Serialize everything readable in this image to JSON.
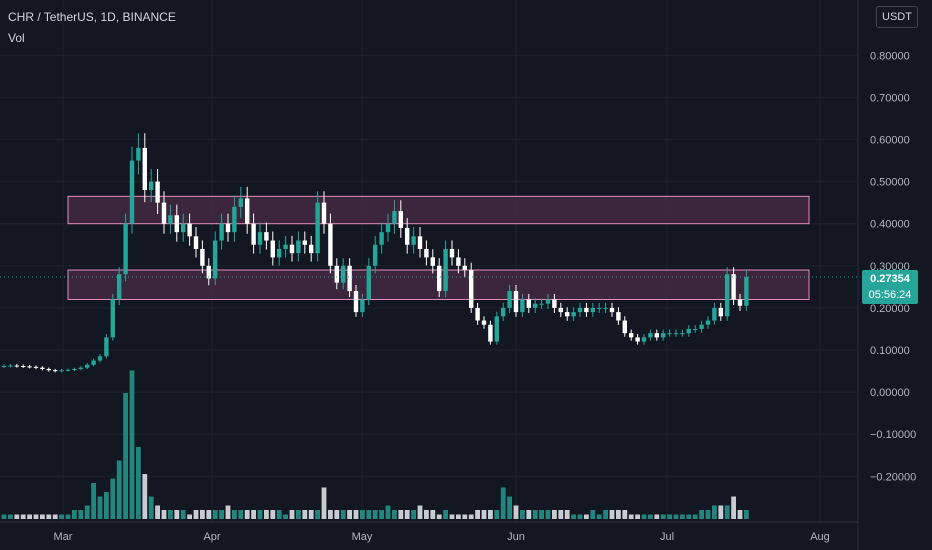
{
  "header": {
    "symbol": "CHR / TetherUS, 1D, BINANCE",
    "volume_label": "Vol"
  },
  "price_axis": {
    "unit": "USDT",
    "last_price": "0.27354",
    "countdown": "05:56:24"
  },
  "colors": {
    "background": "#131722",
    "up": "#26a69a",
    "down": "#ffffff",
    "zone_fill": "#4a2c44",
    "zone_border": "#e58bbd",
    "grid": "#1e222d"
  },
  "chart_data": {
    "type": "candlestick",
    "symbol": "CHR / TetherUS",
    "interval": "1D",
    "exchange": "BINANCE",
    "y_ticks": [
      0.8,
      0.7,
      0.6,
      0.5,
      0.4,
      0.3,
      0.2,
      0.1,
      0.0,
      -0.1,
      -0.2
    ],
    "y_tick_labels": [
      "0.80000",
      "0.70000",
      "0.60000",
      "0.50000",
      "0.40000",
      "0.30000",
      "0.20000",
      "0.10000",
      "0.00000",
      "−0.10000",
      "−0.20000"
    ],
    "x_labels": [
      "Mar",
      "Apr",
      "May",
      "Jun",
      "Jul",
      "Aug"
    ],
    "last_price": 0.27354,
    "zones": [
      {
        "from": 0.4,
        "to": 0.465
      },
      {
        "from": 0.22,
        "to": 0.29
      }
    ],
    "closes": [
      0.062,
      0.063,
      0.062,
      0.061,
      0.06,
      0.058,
      0.055,
      0.052,
      0.05,
      0.052,
      0.053,
      0.055,
      0.058,
      0.065,
      0.075,
      0.085,
      0.13,
      0.22,
      0.28,
      0.4,
      0.55,
      0.58,
      0.48,
      0.5,
      0.45,
      0.4,
      0.42,
      0.38,
      0.4,
      0.37,
      0.34,
      0.3,
      0.27,
      0.36,
      0.4,
      0.38,
      0.44,
      0.46,
      0.4,
      0.35,
      0.38,
      0.36,
      0.32,
      0.34,
      0.35,
      0.33,
      0.36,
      0.35,
      0.33,
      0.45,
      0.4,
      0.3,
      0.26,
      0.3,
      0.24,
      0.19,
      0.22,
      0.3,
      0.35,
      0.38,
      0.4,
      0.43,
      0.39,
      0.35,
      0.37,
      0.34,
      0.32,
      0.3,
      0.24,
      0.34,
      0.32,
      0.3,
      0.29,
      0.2,
      0.17,
      0.16,
      0.12,
      0.18,
      0.2,
      0.24,
      0.19,
      0.22,
      0.2,
      0.21,
      0.21,
      0.22,
      0.2,
      0.19,
      0.18,
      0.19,
      0.2,
      0.19,
      0.2,
      0.2,
      0.2,
      0.19,
      0.17,
      0.14,
      0.13,
      0.12,
      0.13,
      0.14,
      0.13,
      0.14,
      0.14,
      0.14,
      0.14,
      0.15,
      0.15,
      0.16,
      0.17,
      0.2,
      0.18,
      0.28,
      0.22,
      0.205,
      0.27354
    ],
    "volumes": [
      1,
      1,
      1,
      1,
      1,
      1,
      1,
      1,
      1,
      1,
      1,
      2,
      2,
      3,
      8,
      5,
      6,
      9,
      13,
      28,
      33,
      16,
      10,
      5,
      3,
      2,
      2,
      2,
      2,
      1,
      2,
      2,
      2,
      2,
      2,
      3,
      2,
      2,
      2,
      2,
      2,
      2,
      2,
      2,
      1,
      2,
      2,
      2,
      2,
      2,
      7,
      2,
      2,
      2,
      2,
      2,
      2,
      2,
      2,
      2,
      3,
      2,
      2,
      2,
      2,
      3,
      2,
      2,
      1,
      2,
      1,
      1,
      1,
      1,
      2,
      2,
      2,
      2,
      7,
      5,
      3,
      2,
      2,
      2,
      2,
      2,
      2,
      2,
      2,
      1,
      1,
      1,
      2,
      1,
      2,
      2,
      2,
      2,
      1,
      1,
      1,
      1,
      1,
      1,
      1,
      1,
      1,
      1,
      1,
      2,
      2,
      3,
      3,
      3,
      5,
      2,
      2
    ],
    "volume_axis": "none"
  }
}
